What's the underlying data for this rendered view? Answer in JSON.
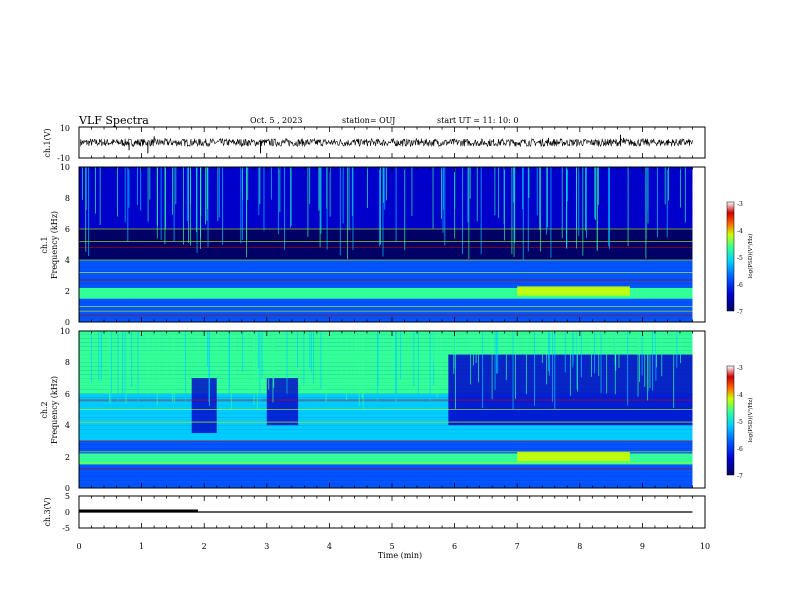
{
  "header": {
    "title": "VLF Spectra",
    "date": "Oct. 5 , 2023",
    "station": "station= OUJ",
    "start": "start UT =  11: 10: 0"
  },
  "chart_data": [
    {
      "type": "line",
      "name": "ch1-waveform",
      "ylabel": "ch.1(V)",
      "ylim": [
        -10,
        10
      ],
      "yticks": [
        "10",
        "-10"
      ],
      "xlim": [
        0,
        10
      ],
      "baseline": 0,
      "amplitude": 2.5,
      "spikes": [
        {
          "t": 0.8,
          "v": -5
        },
        {
          "t": 1.1,
          "v": -7
        },
        {
          "t": 1.2,
          "v": 4
        },
        {
          "t": 2.9,
          "v": -7
        },
        {
          "t": 7.5,
          "v": 3
        },
        {
          "t": 8.65,
          "v": 5
        },
        {
          "t": 8.7,
          "v": 3
        }
      ]
    },
    {
      "type": "heatmap",
      "name": "ch1-spectrogram",
      "ylabel_top": "ch.1",
      "ylabel_bottom": "Frequency (kHz)",
      "ylim": [
        0,
        10
      ],
      "yticks": [
        "0",
        "2",
        "4",
        "6",
        "8",
        "10"
      ],
      "xlim": [
        0,
        10
      ],
      "tend_min": 9.8,
      "colorbar": {
        "label": "log(PSD)(V²/Hz)",
        "range": [
          -7,
          -3
        ],
        "ticks": [
          "-3",
          "-4",
          "-5",
          "-6",
          "-7"
        ]
      },
      "strong_band_khz": [
        1.5,
        2.2
      ],
      "line_freqs_khz": [
        0.4,
        0.7,
        1.0,
        2.7,
        3.2,
        4.0,
        4.8,
        5.2,
        6.0
      ]
    },
    {
      "type": "heatmap",
      "name": "ch2-spectrogram",
      "ylabel_top": "ch.2",
      "ylabel_bottom": "Frequency (kHz)",
      "ylim": [
        0,
        10
      ],
      "yticks": [
        "0",
        "2",
        "4",
        "6",
        "8",
        "10"
      ],
      "xlim": [
        0,
        10
      ],
      "tend_min": 9.8,
      "colorbar": {
        "label": "log(PSD)(V²/Hz)",
        "range": [
          -7,
          -3
        ],
        "ticks": [
          "-3",
          "-4",
          "-5",
          "-6",
          "-7"
        ]
      },
      "strong_band_khz": [
        1.5,
        2.2
      ],
      "line_freqs_khz": [
        1.2,
        1.6,
        2.3,
        3.0,
        4.2,
        5.0,
        5.6
      ]
    },
    {
      "type": "line",
      "name": "ch3-waveform",
      "ylabel": "ch.3(V)",
      "ylim": [
        -5,
        5
      ],
      "yticks": [
        "5",
        "0",
        "-5"
      ],
      "xlim": [
        0,
        10
      ],
      "series": [
        {
          "x": [
            0,
            1.9
          ],
          "y": [
            0,
            0
          ],
          "width": 3
        },
        {
          "x": [
            0,
            9.8
          ],
          "y": [
            0,
            0
          ],
          "width": 1.2
        }
      ]
    }
  ],
  "xaxis": {
    "label": "Time (min)",
    "ticks": [
      "0",
      "1",
      "2",
      "3",
      "4",
      "5",
      "6",
      "7",
      "8",
      "9",
      "10"
    ]
  },
  "colors": {
    "colormap": [
      "#000066",
      "#0000cc",
      "#0055ff",
      "#00ccff",
      "#33ff99",
      "#ccff00",
      "#ff6600",
      "#cc0000",
      "#ffffff"
    ]
  }
}
